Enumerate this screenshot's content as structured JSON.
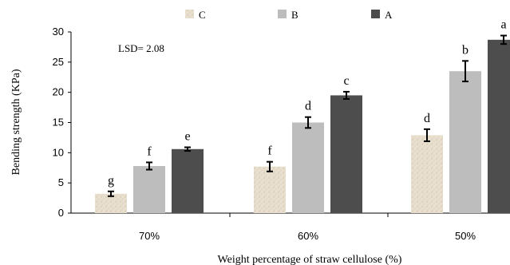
{
  "chart_data": {
    "type": "bar",
    "title": "",
    "xlabel": "Weight percentage of straw cellulose (%)",
    "ylabel": "Bending strength (KPa)",
    "ylim": [
      0,
      30
    ],
    "yticks": [
      "0",
      "5",
      "10",
      "15",
      "20",
      "25",
      "30"
    ],
    "categories": [
      "70%",
      "60%",
      "50%"
    ],
    "series": [
      {
        "name": "C",
        "color": "#e6dccb",
        "pattern": "speckled",
        "values": [
          3.2,
          7.7,
          12.9
        ],
        "errors": [
          0.4,
          0.8,
          1.0
        ],
        "letters": [
          "g",
          "f",
          "d"
        ]
      },
      {
        "name": "B",
        "color": "#bdbdbd",
        "pattern": "solid",
        "values": [
          7.8,
          15.0,
          23.5
        ],
        "errors": [
          0.6,
          0.9,
          1.7
        ],
        "letters": [
          "f",
          "d",
          "b"
        ]
      },
      {
        "name": "A",
        "color": "#4d4d4d",
        "pattern": "solid",
        "values": [
          10.6,
          19.5,
          28.7
        ],
        "errors": [
          0.3,
          0.6,
          0.7
        ],
        "letters": [
          "e",
          "c",
          "a"
        ]
      }
    ],
    "error_bars": true,
    "grid": false,
    "legend_position": "top"
  },
  "annotation": "LSD= 2.08"
}
